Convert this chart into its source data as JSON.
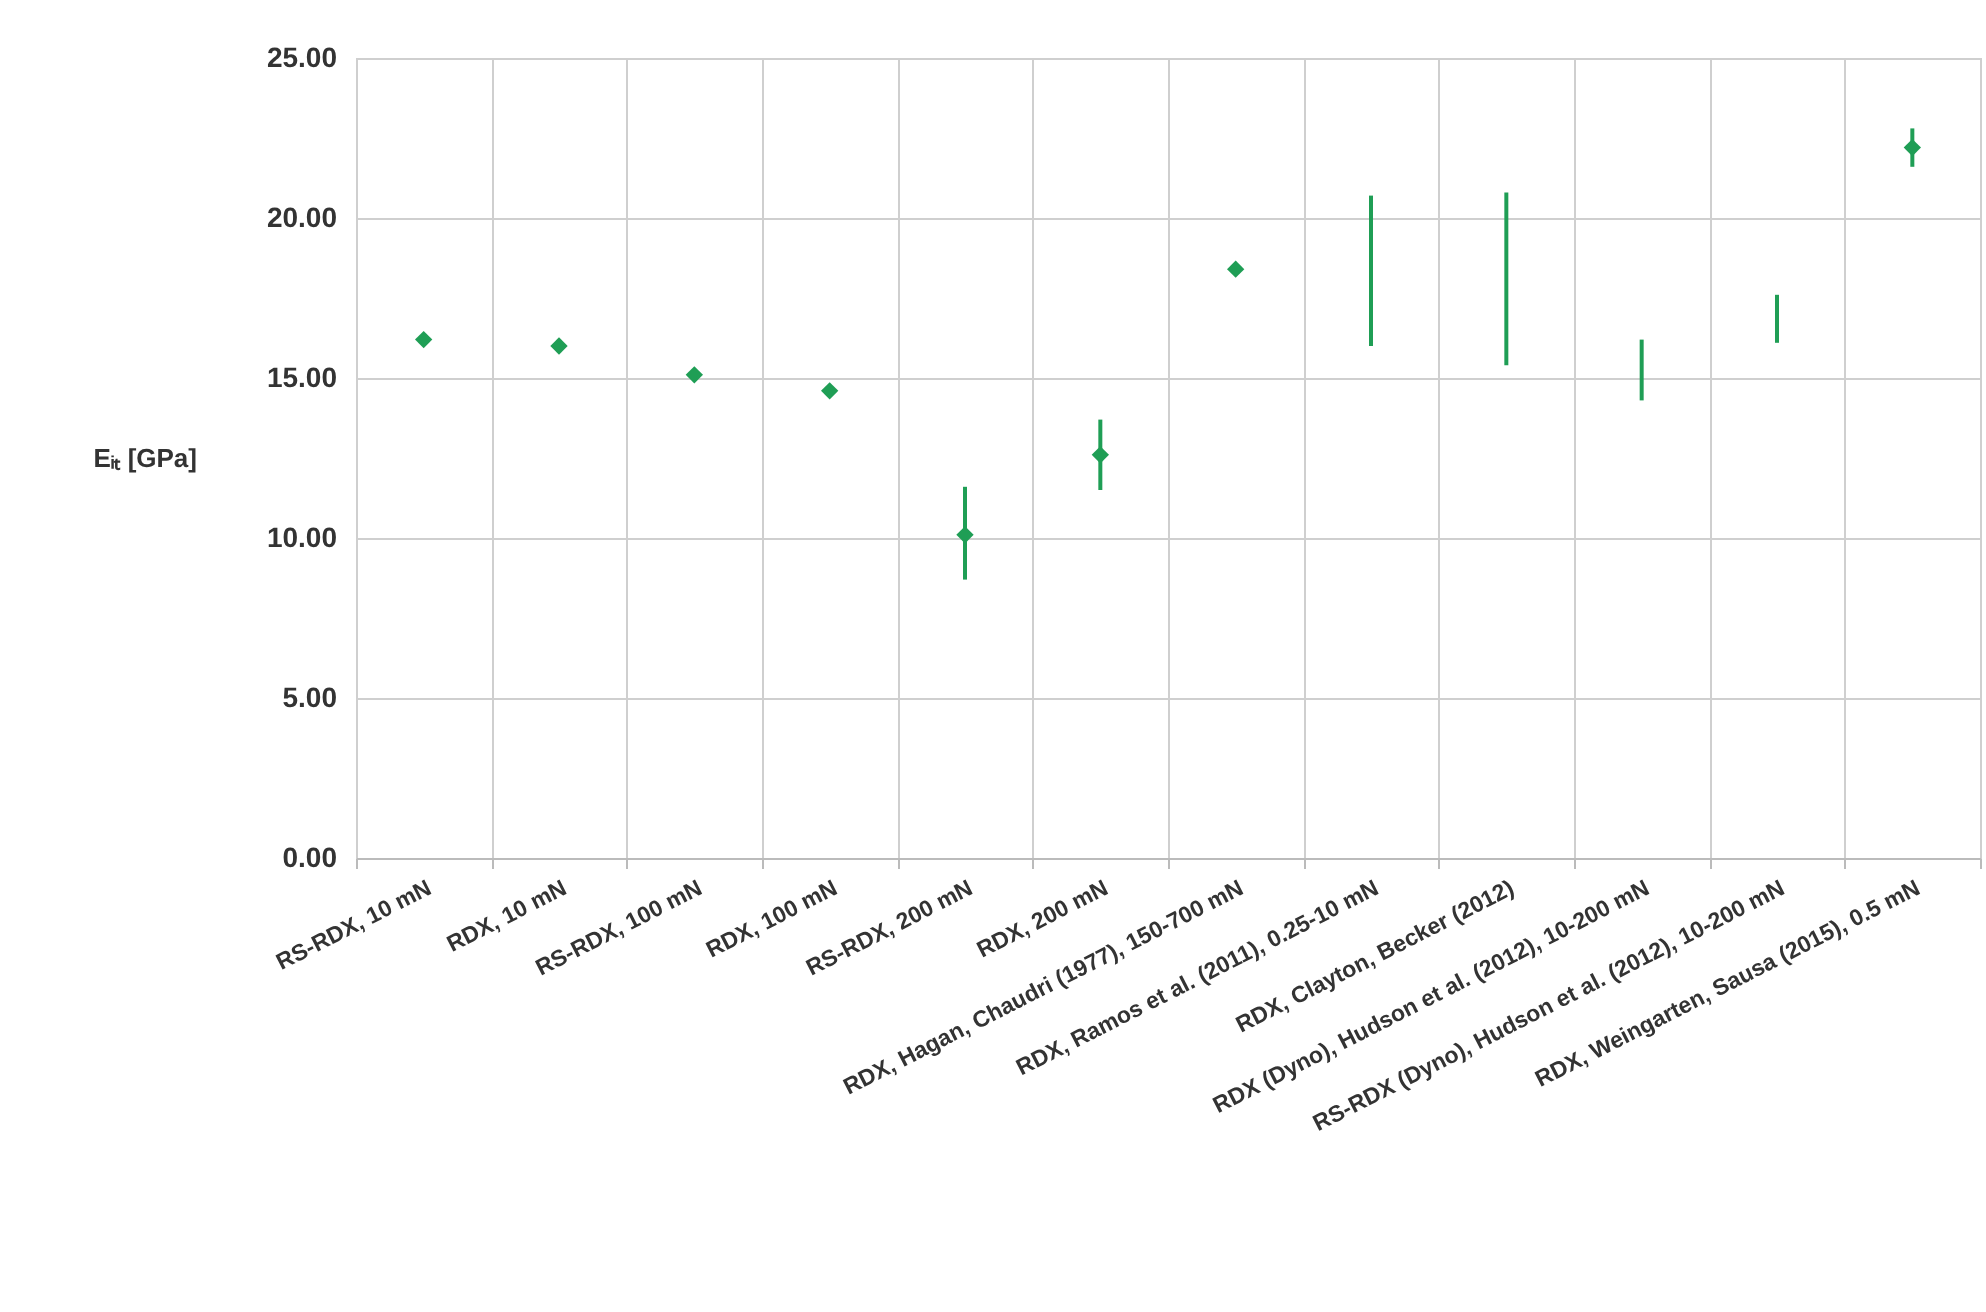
{
  "chart_data": {
    "type": "scatter",
    "ylabel": "Eᵢₜ [GPa]",
    "categories": [
      "RS-RDX, 10 mN",
      "RDX, 10 mN",
      "RS-RDX, 100 mN",
      "RDX, 100 mN",
      "RS-RDX, 200 mN",
      "RDX, 200 mN",
      "RDX, Hagan, Chaudri (1977), 150-700 mN",
      "RDX, Ramos et al. (2011), 0.25-10 mN",
      "RDX, Clayton, Becker (2012)",
      "RDX (Dyno), Hudson et al. (2012), 10-200 mN",
      "RS-RDX (Dyno), Hudson et al. (2012), 10-200 mN",
      "RDX, Weingarten, Sausa (2015), 0.5 mN"
    ],
    "series": [
      {
        "color": "#1f9e55",
        "values": [
          16.2,
          16.0,
          15.1,
          14.6,
          10.1,
          12.6,
          18.4,
          null,
          null,
          null,
          null,
          22.2
        ],
        "errors": [
          null,
          null,
          null,
          null,
          [
            8.7,
            11.6
          ],
          [
            11.5,
            13.7
          ],
          null,
          null,
          null,
          null,
          null,
          [
            21.6,
            22.8
          ]
        ]
      },
      {
        "type": "bar",
        "color": "#1f9e55",
        "base": [
          null,
          null,
          null,
          null,
          null,
          null,
          null,
          16.0,
          15.4,
          14.3,
          16.1,
          null
        ],
        "values": [
          null,
          null,
          null,
          null,
          null,
          null,
          null,
          4.7,
          5.4,
          1.9,
          1.5,
          null
        ]
      }
    ],
    "ylim": [
      0,
      25
    ],
    "yticks": [
      {
        "value": 0,
        "label": "0.00"
      },
      {
        "value": 5,
        "label": "5.00"
      },
      {
        "value": 10,
        "label": "10.00"
      },
      {
        "value": 15,
        "label": "15.00"
      },
      {
        "value": 20,
        "label": "20.00"
      },
      {
        "value": 25,
        "label": "25.00"
      }
    ],
    "grid": true,
    "marker": "diamond"
  }
}
